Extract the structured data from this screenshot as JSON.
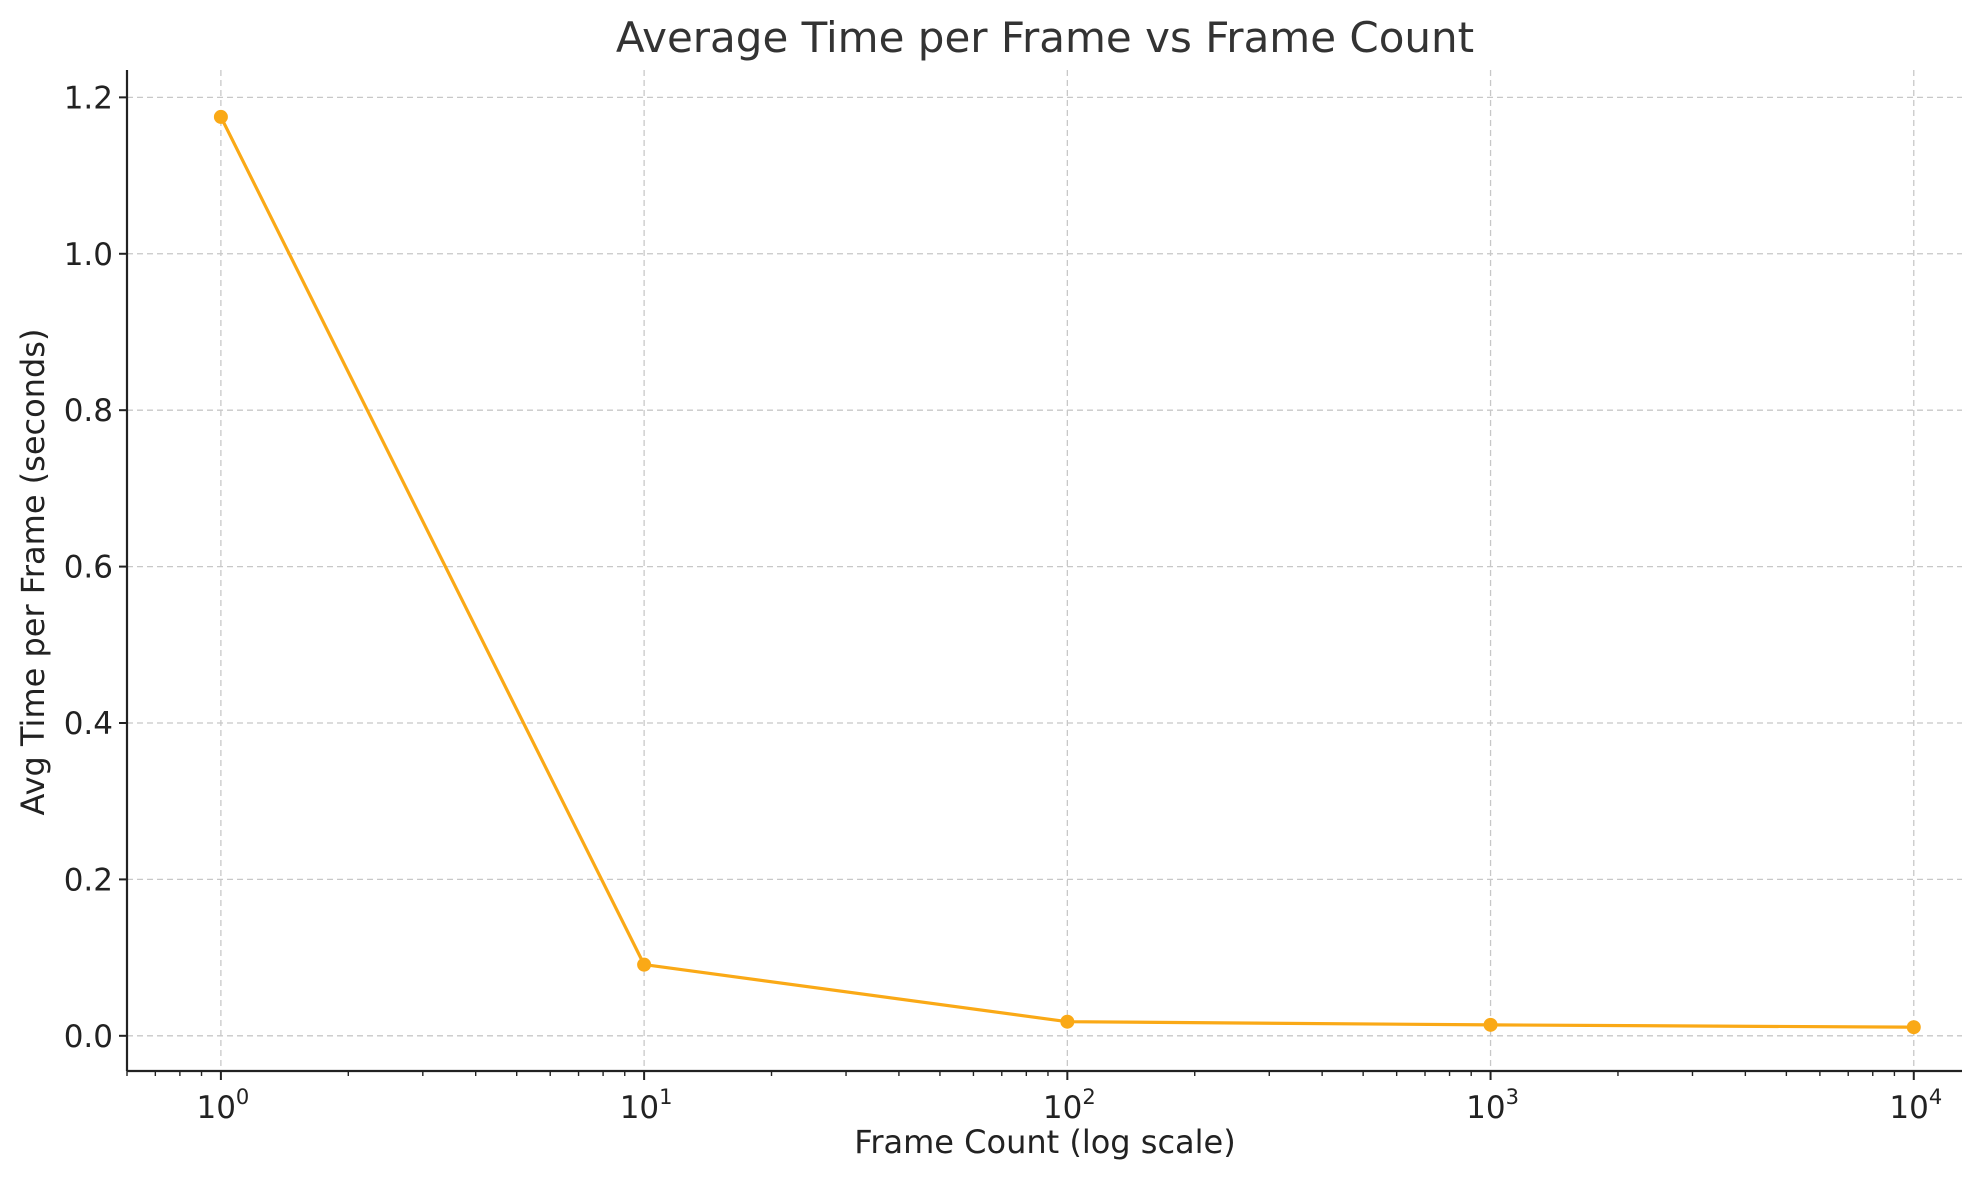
{
  "chart_data": {
    "type": "line",
    "title": "Average Time per Frame vs Frame Count",
    "xlabel": "Frame Count (log scale)",
    "ylabel": "Avg Time per Frame (seconds)",
    "x_scale": "log",
    "xlim": [
      0.6,
      13000
    ],
    "ylim": [
      -0.045,
      1.235
    ],
    "grid": true,
    "x_ticks": [
      {
        "value": 1,
        "base": "10",
        "exp": "0"
      },
      {
        "value": 10,
        "base": "10",
        "exp": "1"
      },
      {
        "value": 100,
        "base": "10",
        "exp": "2"
      },
      {
        "value": 1000,
        "base": "10",
        "exp": "3"
      },
      {
        "value": 10000,
        "base": "10",
        "exp": "4"
      }
    ],
    "y_ticks": [
      {
        "value": 0.0,
        "label": "0.0"
      },
      {
        "value": 0.2,
        "label": "0.2"
      },
      {
        "value": 0.4,
        "label": "0.4"
      },
      {
        "value": 0.6,
        "label": "0.6"
      },
      {
        "value": 0.8,
        "label": "0.8"
      },
      {
        "value": 1.0,
        "label": "1.0"
      },
      {
        "value": 1.2,
        "label": "1.2"
      }
    ],
    "series": [
      {
        "color": "#FAA916",
        "marker": "circle",
        "x": [
          1,
          10,
          100,
          1000,
          10000
        ],
        "y": [
          1.175,
          0.091,
          0.018,
          0.014,
          0.011
        ]
      }
    ]
  }
}
